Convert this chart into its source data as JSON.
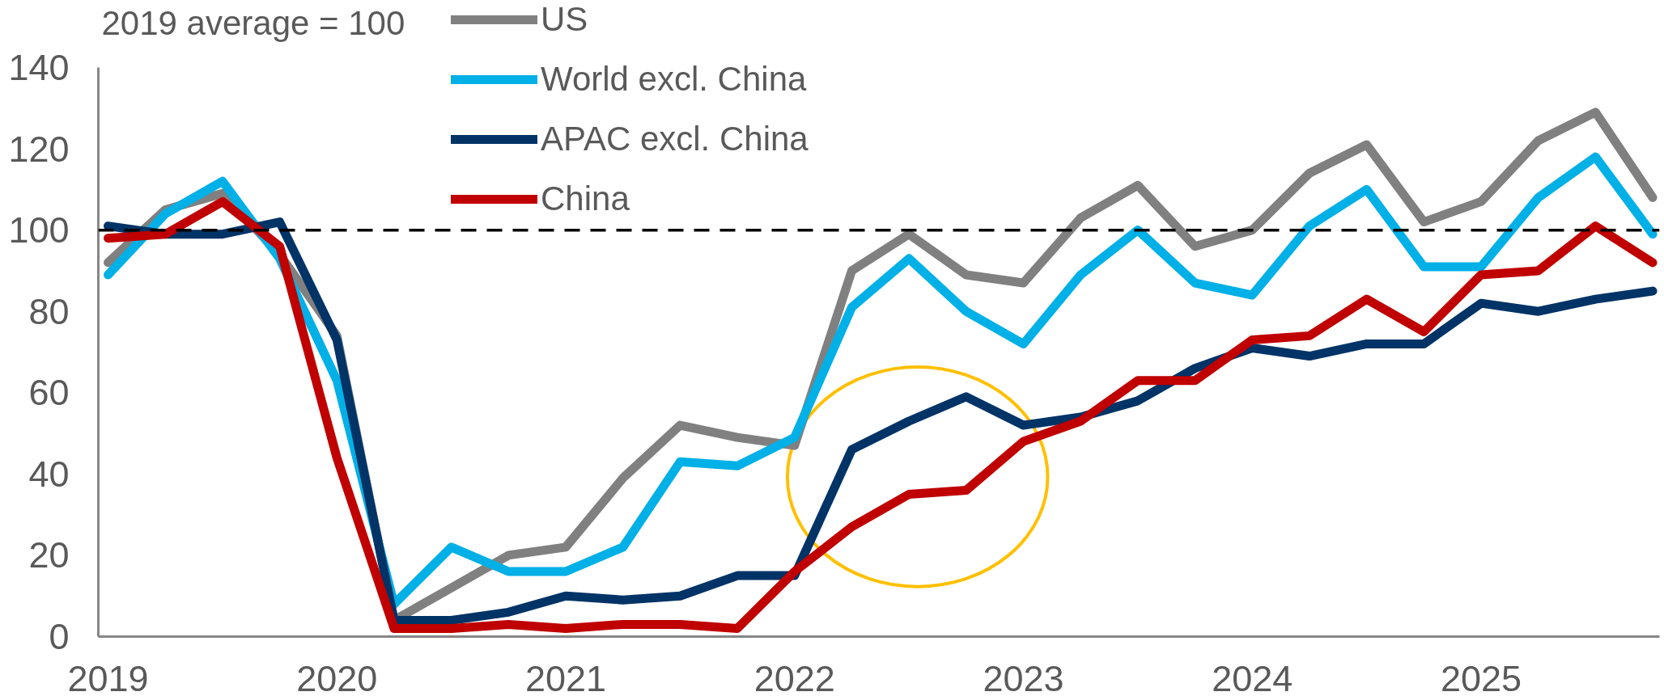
{
  "chart_data": {
    "type": "line",
    "title": "2019 average = 100",
    "categories": [
      "2019",
      null,
      null,
      null,
      "2020",
      null,
      null,
      null,
      "2021",
      null,
      null,
      null,
      "2022",
      null,
      null,
      null,
      "2023",
      null,
      null,
      null,
      "2024",
      null,
      null,
      null,
      "2025",
      null,
      null,
      null
    ],
    "series": [
      {
        "name": "US",
        "color": "#808080",
        "values": [
          92,
          105,
          109,
          94,
          74,
          4,
          12,
          20,
          22,
          39,
          52,
          49,
          47,
          90,
          99,
          89,
          87,
          103,
          111,
          96,
          100,
          114,
          121,
          102,
          107,
          122,
          129,
          108
        ]
      },
      {
        "name": "World excl. China",
        "color": "#00b0e6",
        "values": [
          89,
          104,
          112,
          93,
          63,
          8,
          22,
          16,
          16,
          22,
          43,
          42,
          49,
          81,
          93,
          80,
          72,
          89,
          100,
          87,
          84,
          101,
          110,
          91,
          91,
          108,
          118,
          99
        ]
      },
      {
        "name": "APAC excl. China",
        "color": "#003366",
        "values": [
          101,
          99,
          99,
          102,
          73,
          4,
          4,
          6,
          10,
          9,
          10,
          15,
          15,
          46,
          53,
          59,
          52,
          54,
          58,
          66,
          71,
          69,
          72,
          72,
          82,
          80,
          83,
          85
        ]
      },
      {
        "name": "China",
        "color": "#c00000",
        "values": [
          98,
          99,
          107,
          96,
          44,
          2,
          2,
          3,
          2,
          3,
          3,
          2,
          16,
          27,
          35,
          36,
          48,
          53,
          63,
          63,
          73,
          74,
          83,
          75,
          89,
          90,
          101,
          92
        ]
      }
    ],
    "ylim": [
      0,
      140
    ],
    "yticks": [
      0,
      20,
      40,
      60,
      80,
      100,
      120,
      140
    ],
    "ref_lines": [
      {
        "axis": "y",
        "value": 100,
        "color": "#000000",
        "line_style": "dashed"
      }
    ],
    "legend": "top"
  }
}
